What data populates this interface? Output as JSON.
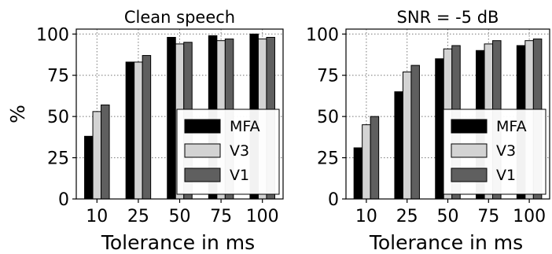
{
  "chart_data": [
    {
      "type": "bar",
      "title": "Clean speech",
      "xlabel": "Tolerance in ms",
      "ylabel": "%",
      "categories": [
        "10",
        "25",
        "50",
        "75",
        "100"
      ],
      "ylim": [
        0,
        103
      ],
      "yticks": [
        "0",
        "25",
        "50",
        "75",
        "100"
      ],
      "grid": true,
      "legend_position": "lower-right",
      "series": [
        {
          "name": "MFA",
          "color": "#000000",
          "values": [
            38,
            83,
            98,
            99,
            100
          ]
        },
        {
          "name": "V3",
          "color": "#d3d3d3",
          "values": [
            53,
            83,
            94,
            96,
            97
          ]
        },
        {
          "name": "V1",
          "color": "#5f5f5f",
          "values": [
            57,
            87,
            95,
            97,
            98
          ]
        }
      ]
    },
    {
      "type": "bar",
      "title": "SNR = -5 dB",
      "xlabel": "Tolerance in ms",
      "ylabel": "",
      "categories": [
        "10",
        "25",
        "50",
        "75",
        "100"
      ],
      "ylim": [
        0,
        103
      ],
      "yticks": [
        "0",
        "25",
        "50",
        "75",
        "100"
      ],
      "grid": true,
      "legend_position": "lower-right",
      "series": [
        {
          "name": "MFA",
          "color": "#000000",
          "values": [
            31,
            65,
            85,
            90,
            93
          ]
        },
        {
          "name": "V3",
          "color": "#d3d3d3",
          "values": [
            45,
            77,
            91,
            94,
            96
          ]
        },
        {
          "name": "V1",
          "color": "#5f5f5f",
          "values": [
            50,
            81,
            93,
            96,
            97
          ]
        }
      ]
    }
  ]
}
